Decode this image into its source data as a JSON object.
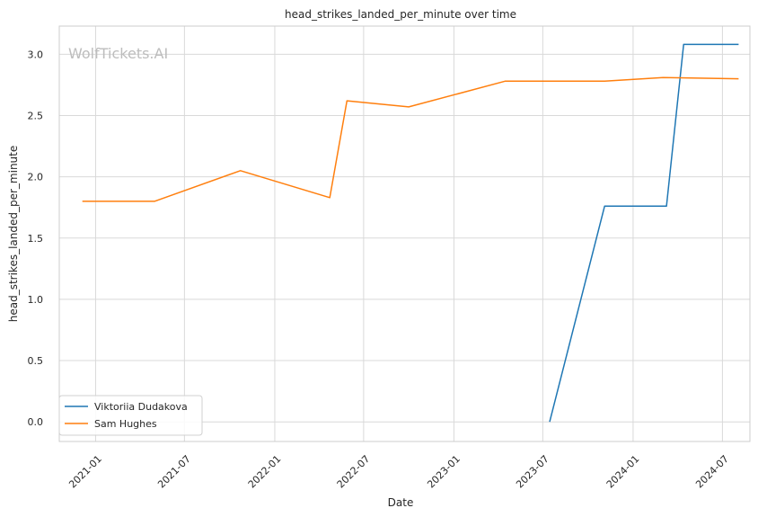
{
  "chart_data": {
    "type": "line",
    "title": "head_strikes_landed_per_minute over time",
    "xlabel": "Date",
    "ylabel": "head_strikes_landed_per_minute",
    "watermark": "WolfTickets.AI",
    "grid": true,
    "legend_position": "lower-left",
    "xlim": [
      "2020-10-19",
      "2024-08-26"
    ],
    "ylim": [
      -0.16,
      3.23
    ],
    "x_ticks": [
      "2021-01",
      "2021-07",
      "2022-01",
      "2022-07",
      "2023-01",
      "2023-07",
      "2024-01",
      "2024-07"
    ],
    "y_ticks": [
      "0.0",
      "0.5",
      "1.0",
      "1.5",
      "2.0",
      "2.5",
      "3.0"
    ],
    "series": [
      {
        "name": "Viktoriia Dudakova",
        "color": "#1f77b4",
        "points": [
          {
            "x": "2023-07-15",
            "y": 0.0
          },
          {
            "x": "2023-11-04",
            "y": 1.76
          },
          {
            "x": "2024-03-09",
            "y": 1.76
          },
          {
            "x": "2024-04-13",
            "y": 3.08
          },
          {
            "x": "2024-08-03",
            "y": 3.08
          }
        ]
      },
      {
        "name": "Sam Hughes",
        "color": "#ff7f0e",
        "points": [
          {
            "x": "2020-12-05",
            "y": 1.8
          },
          {
            "x": "2021-05-01",
            "y": 1.8
          },
          {
            "x": "2021-10-23",
            "y": 2.05
          },
          {
            "x": "2022-04-23",
            "y": 1.83
          },
          {
            "x": "2022-05-28",
            "y": 2.62
          },
          {
            "x": "2022-10-01",
            "y": 2.57
          },
          {
            "x": "2023-04-15",
            "y": 2.78
          },
          {
            "x": "2023-11-04",
            "y": 2.78
          },
          {
            "x": "2024-03-02",
            "y": 2.81
          },
          {
            "x": "2024-08-03",
            "y": 2.8
          }
        ]
      }
    ]
  }
}
